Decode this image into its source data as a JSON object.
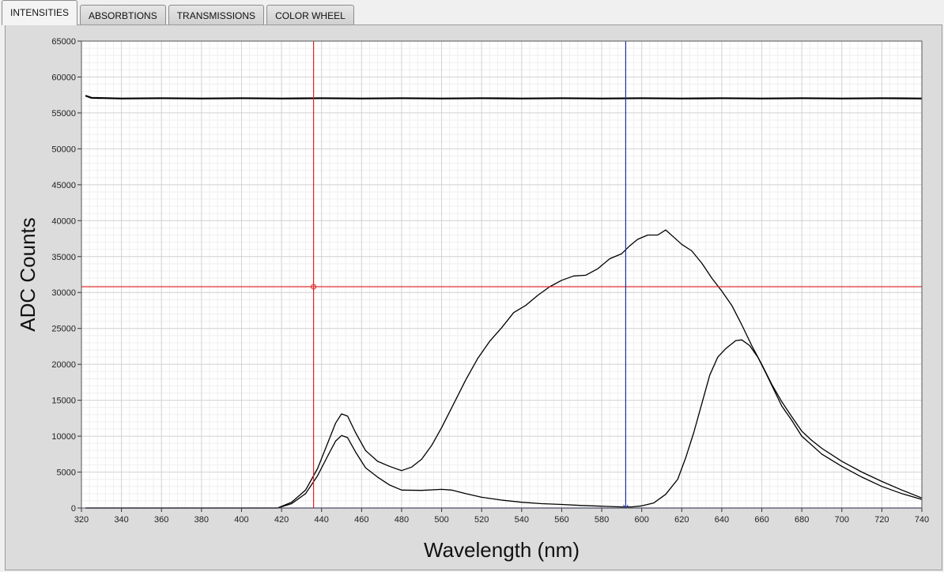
{
  "tabs": [
    {
      "label": "INTENSITIES",
      "active": true
    },
    {
      "label": "ABSORBTIONS",
      "active": false
    },
    {
      "label": "TRANSMISSIONS",
      "active": false
    },
    {
      "label": "COLOR WHEEL",
      "active": false
    }
  ],
  "chart_data": {
    "type": "line",
    "xlabel": "Wavelength (nm)",
    "ylabel": "ADC Counts",
    "xlim": [
      320,
      740
    ],
    "ylim": [
      0,
      65000
    ],
    "xticks": [
      320,
      340,
      360,
      380,
      400,
      420,
      440,
      460,
      480,
      500,
      520,
      540,
      560,
      580,
      600,
      620,
      640,
      660,
      680,
      700,
      720,
      740
    ],
    "yticks": [
      0,
      5000,
      10000,
      15000,
      20000,
      25000,
      30000,
      35000,
      40000,
      45000,
      50000,
      55000,
      60000,
      65000
    ],
    "grid": true,
    "cursors": [
      {
        "color": "#e02020",
        "x": 436,
        "y": 30800
      },
      {
        "color": "#2030a0",
        "x": 592
      }
    ],
    "series": [
      {
        "color": "#000000",
        "points": [
          [
            322,
            57400
          ],
          [
            325,
            57100
          ],
          [
            340,
            57000
          ],
          [
            360,
            57050
          ],
          [
            380,
            57000
          ],
          [
            400,
            57050
          ],
          [
            420,
            57000
          ],
          [
            440,
            57050
          ],
          [
            460,
            57000
          ],
          [
            480,
            57050
          ],
          [
            500,
            57000
          ],
          [
            520,
            57050
          ],
          [
            540,
            57000
          ],
          [
            560,
            57050
          ],
          [
            580,
            57000
          ],
          [
            600,
            57050
          ],
          [
            620,
            57000
          ],
          [
            640,
            57050
          ],
          [
            660,
            57000
          ],
          [
            680,
            57050
          ],
          [
            700,
            57000
          ],
          [
            720,
            57050
          ],
          [
            740,
            57000
          ]
        ]
      },
      {
        "color": "#000000",
        "points": [
          [
            322,
            0
          ],
          [
            400,
            0
          ],
          [
            418,
            0
          ],
          [
            425,
            800
          ],
          [
            432,
            2500
          ],
          [
            438,
            5500
          ],
          [
            443,
            9000
          ],
          [
            447,
            11800
          ],
          [
            450,
            13100
          ],
          [
            453,
            12800
          ],
          [
            457,
            10500
          ],
          [
            462,
            8000
          ],
          [
            468,
            6500
          ],
          [
            474,
            5800
          ],
          [
            480,
            5200
          ],
          [
            485,
            5700
          ],
          [
            490,
            6800
          ],
          [
            495,
            8700
          ],
          [
            500,
            11200
          ],
          [
            506,
            14500
          ],
          [
            512,
            17800
          ],
          [
            518,
            20800
          ],
          [
            524,
            23200
          ],
          [
            530,
            25100
          ],
          [
            536,
            27200
          ],
          [
            542,
            28200
          ],
          [
            548,
            29600
          ],
          [
            554,
            30800
          ],
          [
            560,
            31700
          ],
          [
            566,
            32300
          ],
          [
            572,
            32400
          ],
          [
            578,
            33300
          ],
          [
            584,
            34700
          ],
          [
            590,
            35400
          ],
          [
            594,
            36500
          ],
          [
            598,
            37400
          ],
          [
            603,
            38000
          ],
          [
            608,
            38000
          ],
          [
            612,
            38700
          ],
          [
            616,
            37700
          ],
          [
            620,
            36700
          ],
          [
            625,
            35800
          ],
          [
            630,
            34100
          ],
          [
            635,
            32000
          ],
          [
            640,
            30200
          ],
          [
            645,
            28200
          ],
          [
            650,
            25500
          ],
          [
            655,
            22600
          ],
          [
            660,
            20000
          ],
          [
            665,
            17200
          ],
          [
            670,
            14800
          ],
          [
            675,
            12700
          ],
          [
            680,
            10700
          ],
          [
            685,
            9400
          ],
          [
            690,
            8300
          ],
          [
            700,
            6500
          ],
          [
            710,
            5000
          ],
          [
            720,
            3700
          ],
          [
            730,
            2500
          ],
          [
            740,
            1400
          ]
        ]
      },
      {
        "color": "#000000",
        "points": [
          [
            322,
            0
          ],
          [
            418,
            0
          ],
          [
            425,
            600
          ],
          [
            432,
            2000
          ],
          [
            438,
            4500
          ],
          [
            443,
            7200
          ],
          [
            447,
            9300
          ],
          [
            450,
            10100
          ],
          [
            453,
            9800
          ],
          [
            457,
            7800
          ],
          [
            462,
            5600
          ],
          [
            468,
            4300
          ],
          [
            474,
            3200
          ],
          [
            480,
            2500
          ],
          [
            490,
            2450
          ],
          [
            500,
            2600
          ],
          [
            505,
            2500
          ],
          [
            512,
            2000
          ],
          [
            520,
            1500
          ],
          [
            530,
            1100
          ],
          [
            540,
            800
          ],
          [
            550,
            600
          ],
          [
            560,
            500
          ],
          [
            570,
            350
          ],
          [
            580,
            250
          ],
          [
            590,
            150
          ],
          [
            595,
            150
          ],
          [
            600,
            300
          ],
          [
            606,
            700
          ],
          [
            612,
            1900
          ],
          [
            618,
            4000
          ],
          [
            622,
            7000
          ],
          [
            626,
            10500
          ],
          [
            630,
            14500
          ],
          [
            634,
            18500
          ],
          [
            638,
            21000
          ],
          [
            642,
            22200
          ],
          [
            647,
            23300
          ],
          [
            650,
            23400
          ],
          [
            654,
            22600
          ],
          [
            658,
            21000
          ],
          [
            662,
            18800
          ],
          [
            666,
            16500
          ],
          [
            670,
            14200
          ],
          [
            675,
            12200
          ],
          [
            680,
            10000
          ],
          [
            690,
            7500
          ],
          [
            700,
            5800
          ],
          [
            710,
            4300
          ],
          [
            720,
            3000
          ],
          [
            730,
            2000
          ],
          [
            740,
            1200
          ]
        ]
      }
    ]
  }
}
